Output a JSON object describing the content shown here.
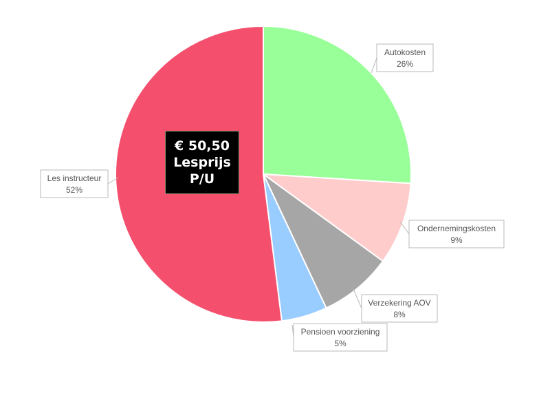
{
  "chart_data": {
    "type": "pie",
    "slices": [
      {
        "label": "Autokosten",
        "value": 26,
        "value_label": "26%",
        "color": "#99ff99"
      },
      {
        "label": "Ondernemingskosten",
        "value": 9,
        "value_label": "9%",
        "color": "#ffcccc"
      },
      {
        "label": "Verzekering AOV",
        "value": 8,
        "value_label": "8%",
        "color": "#a6a6a6"
      },
      {
        "label": "Pensioen voorziening",
        "value": 5,
        "value_label": "5%",
        "color": "#99ccff"
      },
      {
        "label": "Les instructeur",
        "value": 52,
        "value_label": "52%",
        "color": "#f4506e"
      }
    ],
    "start": "12 o'clock",
    "direction": "clockwise"
  },
  "center_label": {
    "line1": "€ 50,50",
    "line2": "Lesprijs",
    "line3": "P/U"
  }
}
